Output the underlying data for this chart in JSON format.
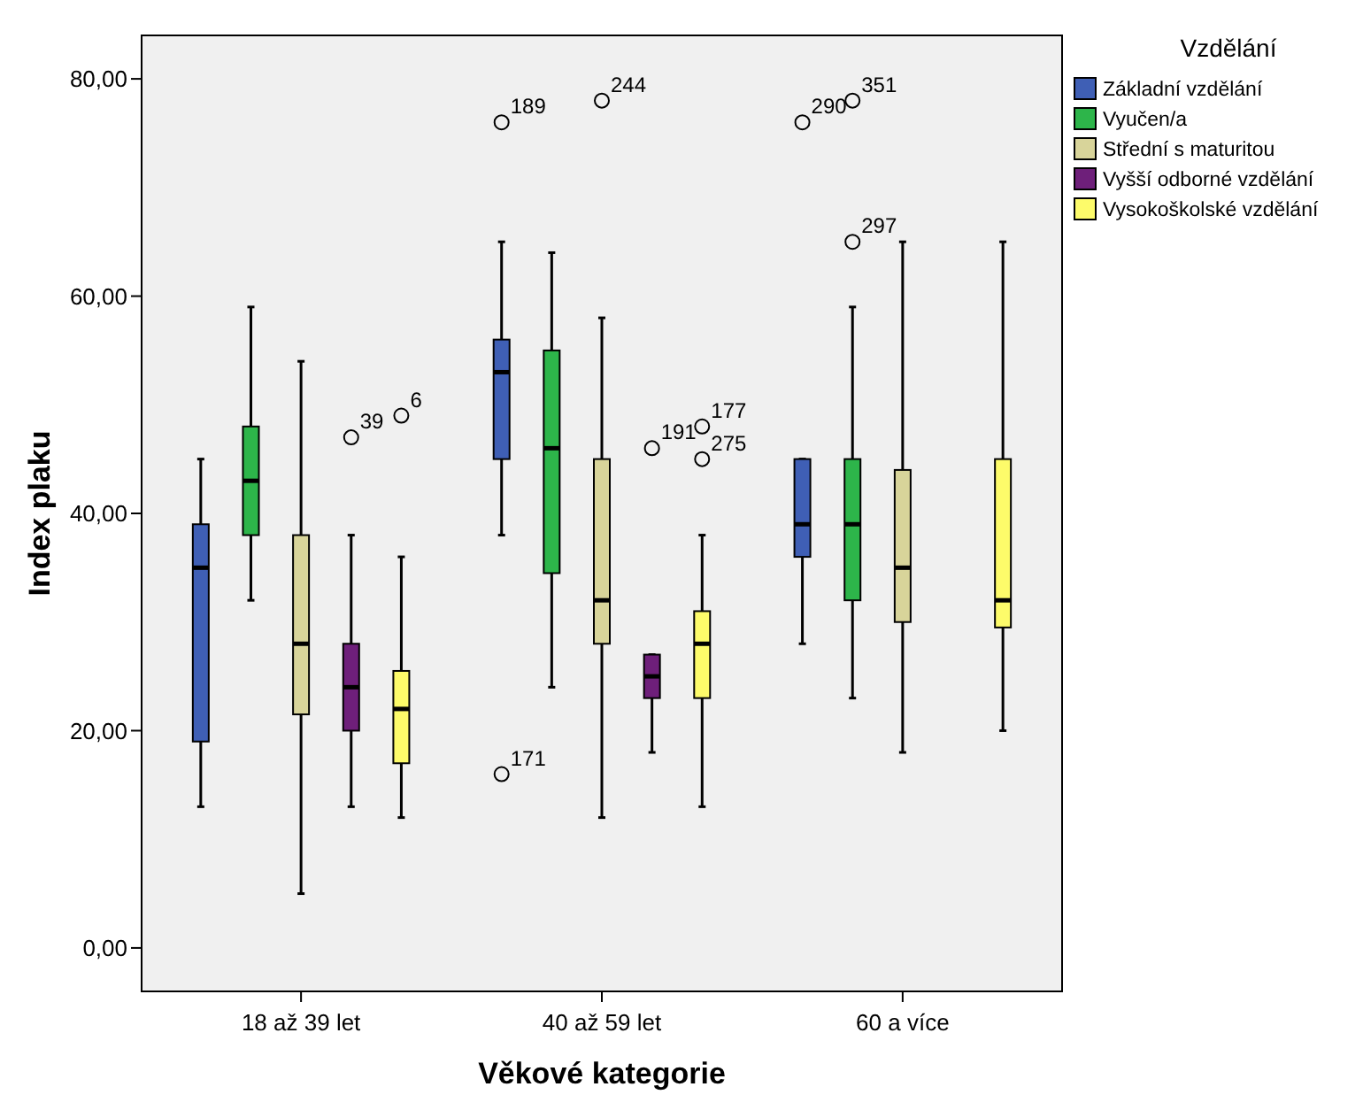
{
  "chart_data": {
    "type": "box",
    "xlabel": "Věkové kategorie",
    "ylabel": "Index plaku",
    "legend_title": "Vzdělání",
    "legend": "right",
    "grid": false,
    "categories": [
      "18 až 39 let",
      "40 až 59 let",
      "60 a více"
    ],
    "ylim": [
      -4,
      84
    ],
    "yticks": [
      {
        "value": 0,
        "label": "0,00"
      },
      {
        "value": 20,
        "label": "20,00"
      },
      {
        "value": 40,
        "label": "40,00"
      },
      {
        "value": 60,
        "label": "60,00"
      },
      {
        "value": 80,
        "label": "80,00"
      }
    ],
    "series": [
      {
        "name": "Základní vzdělání",
        "color": "#3f5fb5",
        "boxes": [
          {
            "low": 13,
            "q1": 19,
            "median": 35,
            "q3": 39,
            "high": 45
          },
          {
            "low": 38,
            "q1": 45,
            "median": 53,
            "q3": 56,
            "high": 65,
            "outliers": [
              76,
              16
            ]
          },
          {
            "low": 28,
            "q1": 36,
            "median": 39,
            "q3": 45,
            "high": 45,
            "outliers": [
              76
            ]
          }
        ]
      },
      {
        "name": "Vyučen/a",
        "color": "#2db54a",
        "boxes": [
          {
            "low": 32,
            "q1": 38,
            "median": 43,
            "q3": 48,
            "high": 59
          },
          {
            "low": 24,
            "q1": 34.5,
            "median": 46,
            "q3": 55,
            "high": 64
          },
          {
            "low": 23,
            "q1": 32,
            "median": 39,
            "q3": 45,
            "high": 59,
            "outliers": [
              78,
              65
            ]
          }
        ]
      },
      {
        "name": "Střední s maturitou",
        "color": "#d8d49a",
        "boxes": [
          {
            "low": 5,
            "q1": 21.5,
            "median": 28,
            "q3": 38,
            "high": 54
          },
          {
            "low": 12,
            "q1": 28,
            "median": 32,
            "q3": 45,
            "high": 58,
            "outliers": [
              78
            ]
          },
          {
            "low": 18,
            "q1": 30,
            "median": 35,
            "q3": 44,
            "high": 65
          }
        ]
      },
      {
        "name": "Vyšší odborné vzdělání",
        "color": "#6e1f7a",
        "boxes": [
          {
            "low": 13,
            "q1": 20,
            "median": 24,
            "q3": 28,
            "high": 38,
            "outliers": [
              47
            ]
          },
          {
            "low": 18,
            "q1": 23,
            "median": 25,
            "q3": 27,
            "high": 27,
            "outliers": [
              46
            ]
          },
          null
        ]
      },
      {
        "name": "Vysokoškolské vzdělání",
        "color": "#fdfb6a",
        "boxes": [
          {
            "low": 12,
            "q1": 17,
            "median": 22,
            "q3": 25.5,
            "high": 36,
            "outliers": [
              49
            ]
          },
          {
            "low": 13,
            "q1": 23,
            "median": 28,
            "q3": 31,
            "high": 38,
            "outliers": [
              48,
              45
            ]
          },
          {
            "low": 20,
            "q1": 29.5,
            "median": 32,
            "q3": 45,
            "high": 65
          }
        ]
      }
    ],
    "annotations": [
      "189",
      "171",
      "290",
      "351",
      "297",
      "244",
      "39",
      "191",
      "6",
      "177",
      "275"
    ]
  }
}
